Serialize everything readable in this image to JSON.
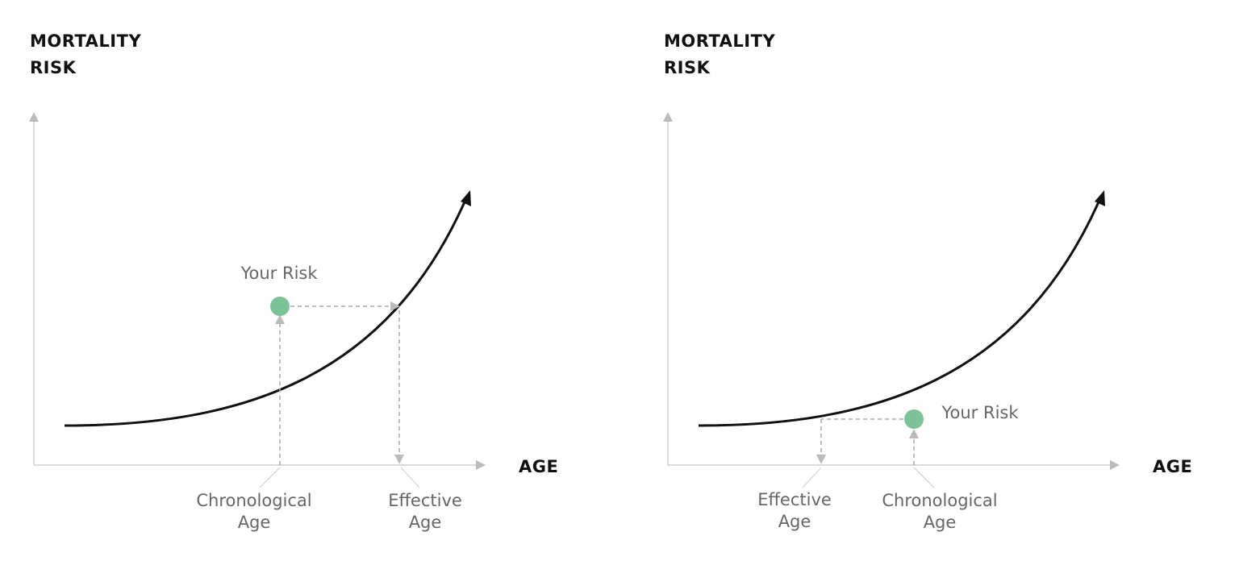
{
  "panels": [
    {
      "y_axis_label": [
        "MORTALITY",
        "RISK"
      ],
      "x_axis_label": "AGE",
      "point_label": "Your Risk",
      "chronological_label": [
        "Chronological",
        "Age"
      ],
      "effective_label": [
        "Effective",
        "Age"
      ]
    },
    {
      "y_axis_label": [
        "MORTALITY",
        "RISK"
      ],
      "x_axis_label": "AGE",
      "point_label": "Your Risk",
      "effective_label": [
        "Effective",
        "Age"
      ],
      "chronological_label": [
        "Chronological",
        "Age"
      ]
    }
  ]
}
